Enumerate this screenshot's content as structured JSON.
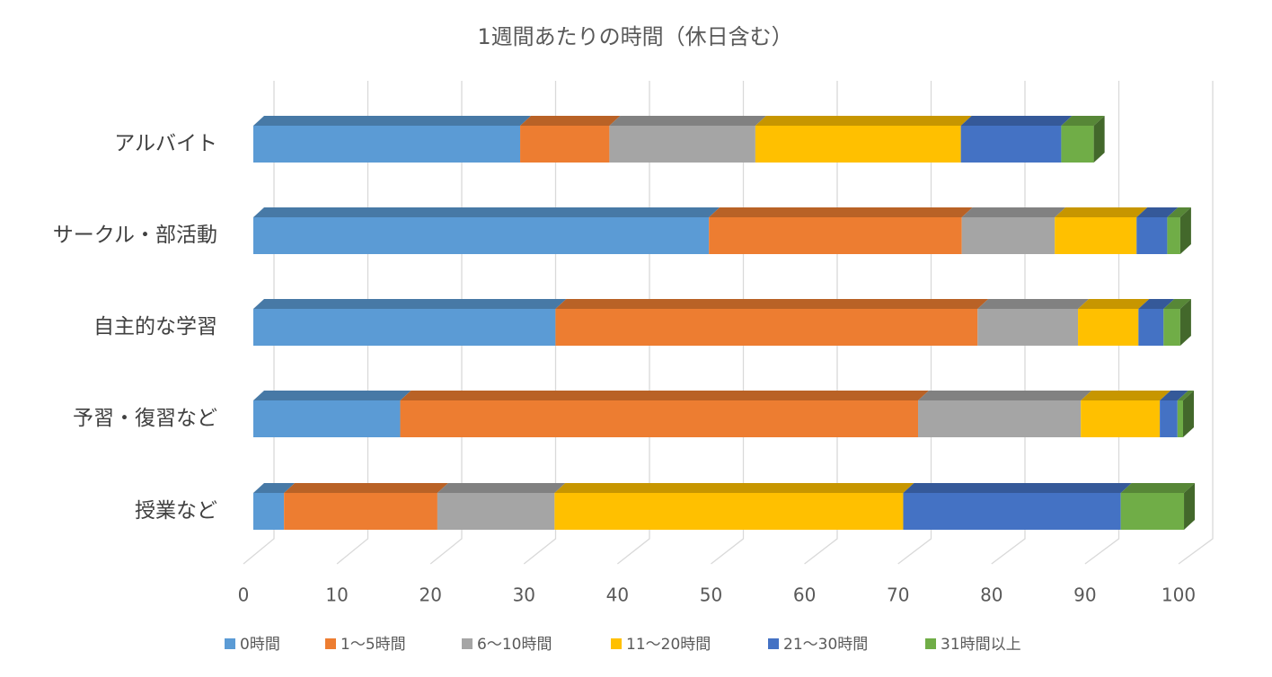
{
  "chart_data": {
    "type": "bar3d-stacked-horizontal",
    "title": "1週間あたりの時間（休日含む）",
    "categories": [
      "アルバイト",
      "サークル・部活動",
      "自主的な学習",
      "予習・復習など",
      "授業など"
    ],
    "series": [
      {
        "name": "0時間",
        "color": "#5b9bd5",
        "values": [
          28.7,
          49.0,
          32.5,
          15.8,
          3.3
        ]
      },
      {
        "name": "1～5時間",
        "color": "#ed7d31",
        "values": [
          9.6,
          27.2,
          45.4,
          55.7,
          16.5
        ]
      },
      {
        "name": "6～10時間",
        "color": "#a5a5a5",
        "values": [
          15.7,
          10.0,
          10.8,
          17.5,
          12.6
        ]
      },
      {
        "name": "11～20時間",
        "color": "#ffc000",
        "values": [
          22.1,
          8.8,
          6.5,
          8.5,
          37.5
        ]
      },
      {
        "name": "21～30時間",
        "color": "#4472c4",
        "values": [
          10.8,
          3.3,
          2.7,
          1.9,
          23.4
        ]
      },
      {
        "name": "31時間以上",
        "color": "#70ad47",
        "values": [
          3.5,
          1.4,
          1.8,
          0.6,
          6.8
        ]
      }
    ],
    "xlim": [
      0,
      100
    ],
    "xticks": [
      0,
      10,
      20,
      30,
      40,
      50,
      60,
      70,
      80,
      90,
      100
    ],
    "grid": true,
    "legend": "bottom"
  }
}
